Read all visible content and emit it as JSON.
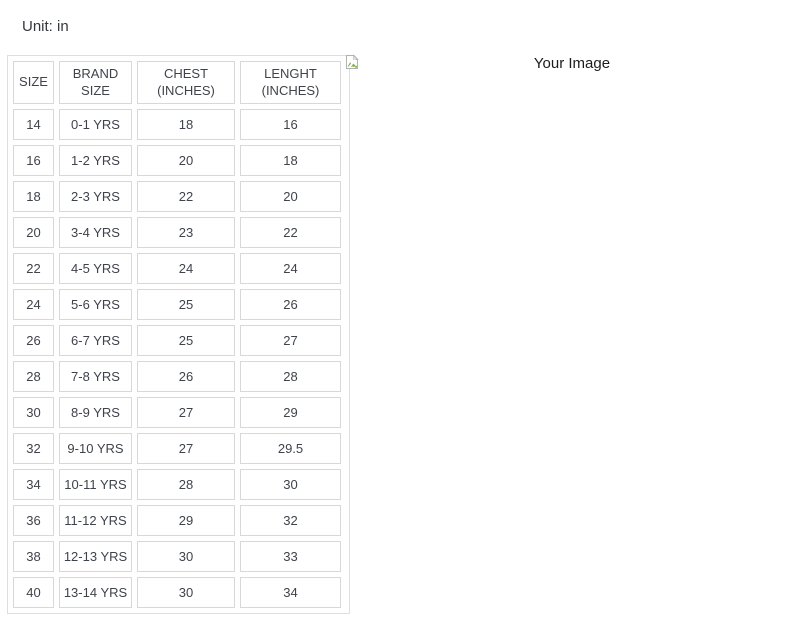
{
  "page": {
    "unit_label": "Unit: in",
    "background": "#ffffff"
  },
  "image_placeholder": {
    "alt_text": "Your Image",
    "icon": "broken-image-icon"
  },
  "size_chart": {
    "headers": [
      "SIZE",
      "BRAND\nSIZE",
      "CHEST\n(INCHES)",
      "LENGHT\n(INCHES)"
    ],
    "rows": [
      [
        "14",
        "0-1 YRS",
        "18",
        "16"
      ],
      [
        "16",
        "1-2 YRS",
        "20",
        "18"
      ],
      [
        "18",
        "2-3 YRS",
        "22",
        "20"
      ],
      [
        "20",
        "3-4 YRS",
        "23",
        "22"
      ],
      [
        "22",
        "4-5 YRS",
        "24",
        "24"
      ],
      [
        "24",
        "5-6 YRS",
        "25",
        "26"
      ],
      [
        "26",
        "6-7 YRS",
        "25",
        "27"
      ],
      [
        "28",
        "7-8 YRS",
        "26",
        "28"
      ],
      [
        "30",
        "8-9 YRS",
        "27",
        "29"
      ],
      [
        "32",
        "9-10 YRS",
        "27",
        "29.5"
      ],
      [
        "34",
        "10-11 YRS",
        "28",
        "30"
      ],
      [
        "36",
        "11-12 YRS",
        "29",
        "32"
      ],
      [
        "38",
        "12-13 YRS",
        "30",
        "33"
      ],
      [
        "40",
        "13-14 YRS",
        "30",
        "34"
      ]
    ],
    "colors": {
      "cell_border": "#d8d8d8",
      "outer_border": "#dedede",
      "text": "#3f434b",
      "icon_green": "#7cb342"
    }
  }
}
